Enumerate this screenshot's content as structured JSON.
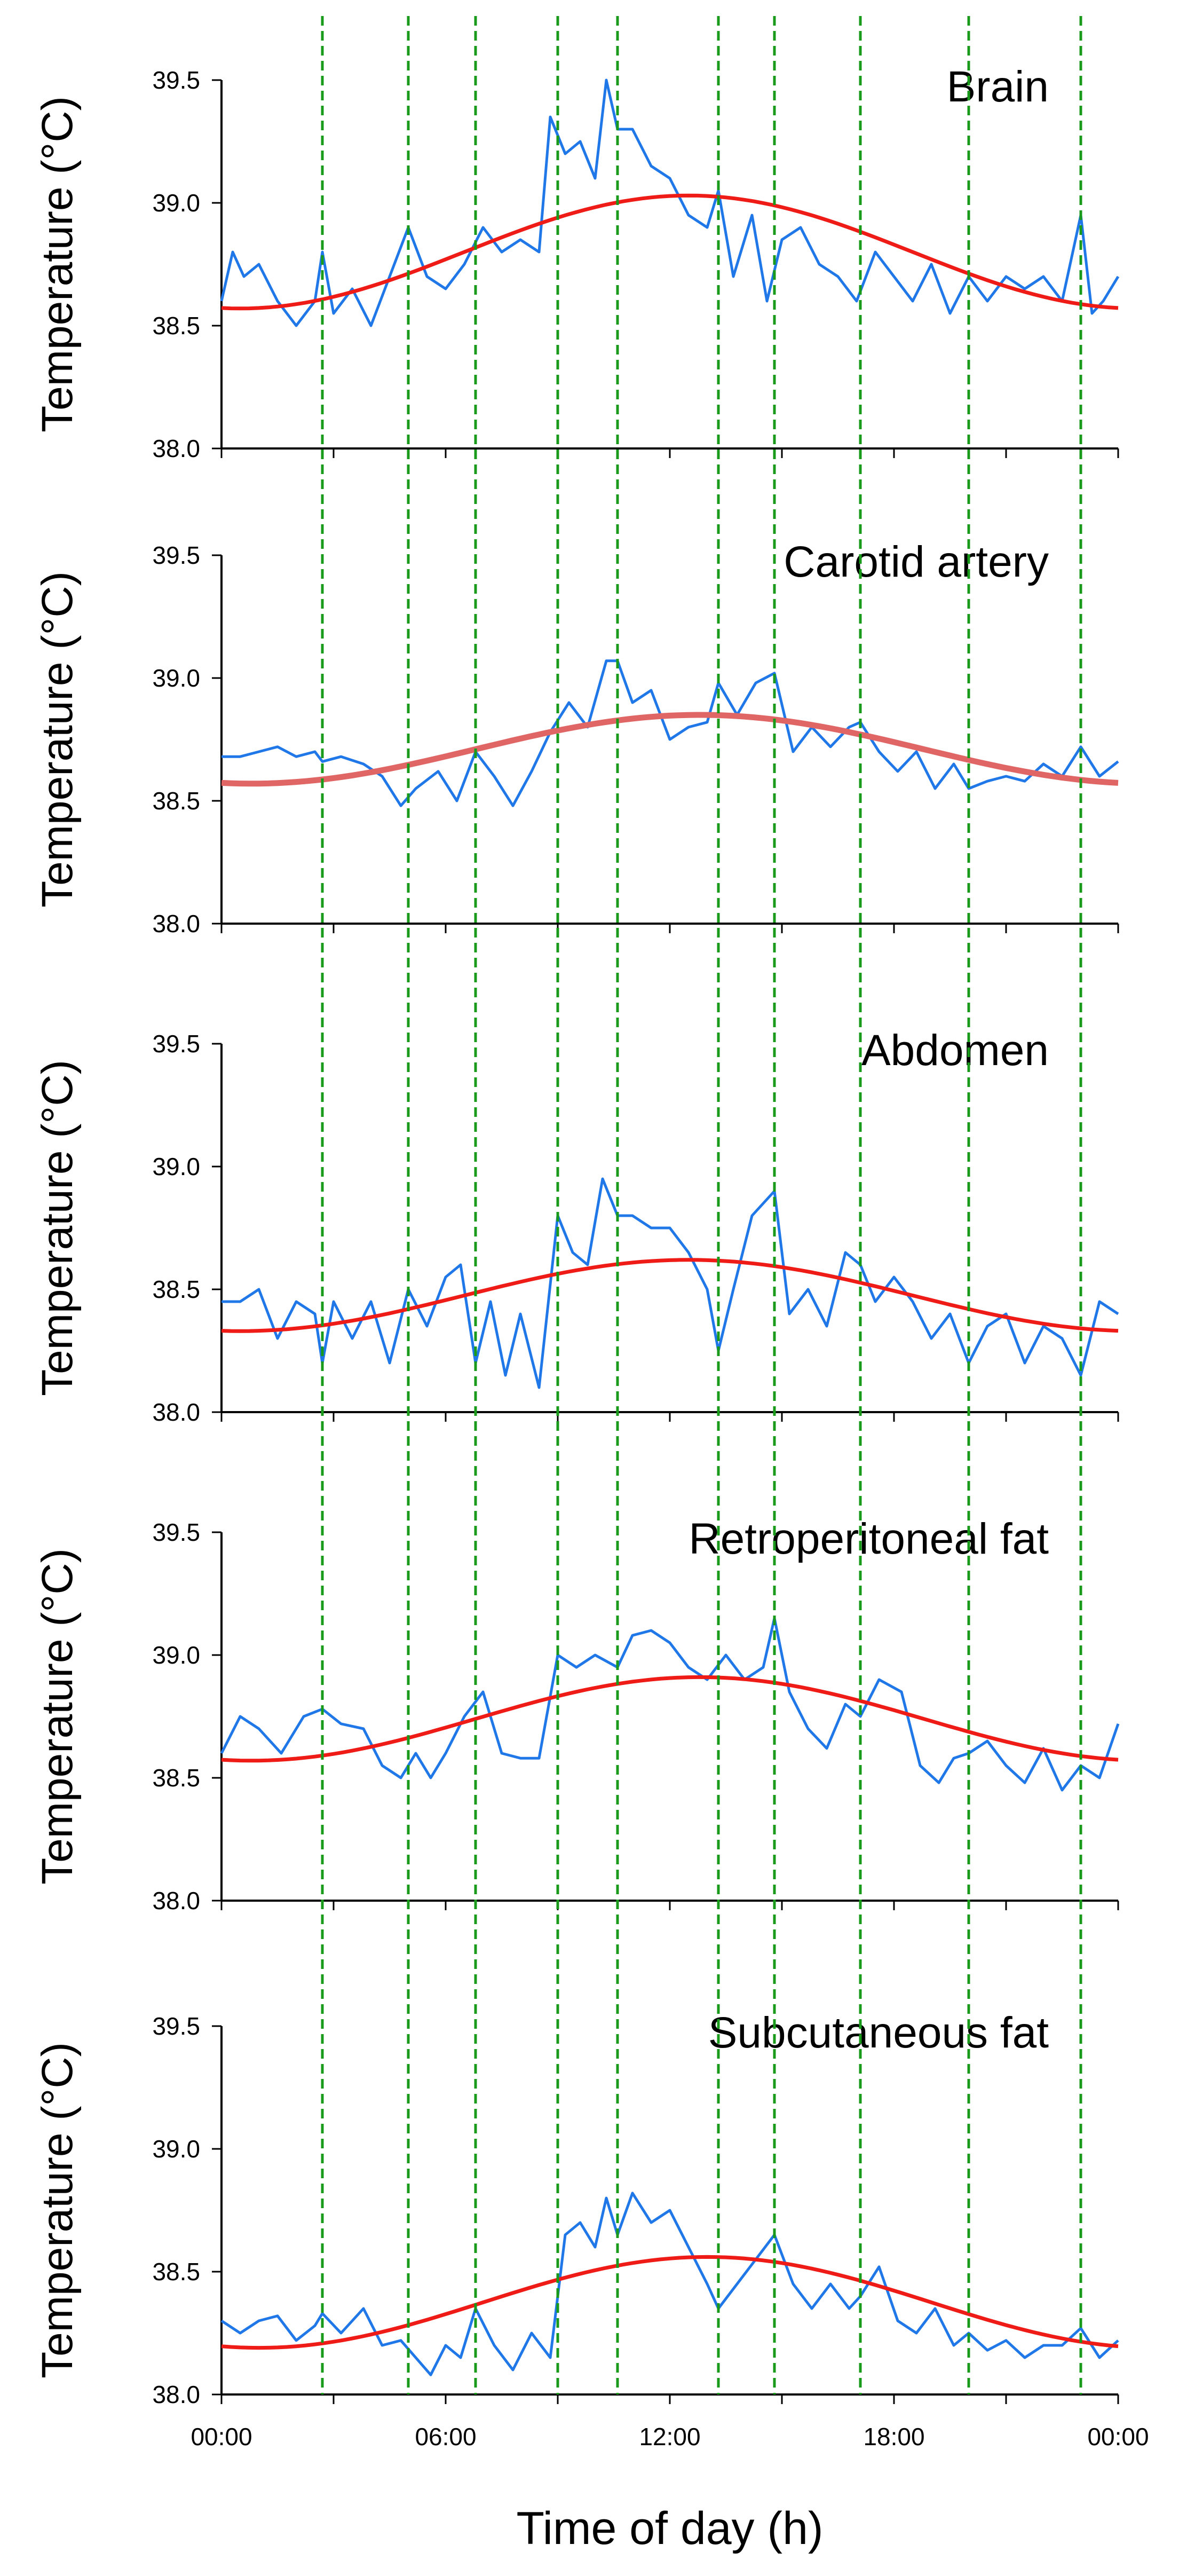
{
  "chart_data": {
    "type": "line",
    "xlabel": "Time of day (h)",
    "x_ticks": [
      "00:00",
      "06:00",
      "12:00",
      "18:00",
      "00:00"
    ],
    "x_range_hours": [
      0,
      24
    ],
    "vertical_markers_hours": [
      2.7,
      5.0,
      6.8,
      9.0,
      10.6,
      13.3,
      14.8,
      17.1,
      20.0,
      23.0
    ],
    "colors": {
      "measured": "#1f77e8",
      "fit": "#ee1b17",
      "markers": "#1a9a1a"
    },
    "panels": [
      {
        "title": "Brain",
        "ylabel": "Temperature (°C)",
        "ylim": [
          38.0,
          39.5
        ],
        "y_ticks": [
          "38.0",
          "38.5",
          "39.0",
          "39.5"
        ],
        "measured": {
          "x": [
            0,
            0.3,
            0.6,
            1.0,
            1.5,
            2.0,
            2.5,
            2.7,
            3.0,
            3.5,
            4.0,
            4.5,
            5.0,
            5.5,
            6.0,
            6.5,
            7.0,
            7.5,
            8.0,
            8.5,
            8.8,
            9.2,
            9.6,
            10.0,
            10.3,
            10.6,
            11.0,
            11.5,
            12.0,
            12.5,
            13.0,
            13.3,
            13.7,
            14.2,
            14.6,
            15.0,
            15.5,
            16.0,
            16.5,
            17.0,
            17.5,
            18.0,
            18.5,
            19.0,
            19.5,
            20.0,
            20.5,
            21.0,
            21.5,
            22.0,
            22.5,
            23.0,
            23.3,
            23.6,
            24.0
          ],
          "values": [
            38.6,
            38.8,
            38.7,
            38.75,
            38.6,
            38.5,
            38.6,
            38.8,
            38.55,
            38.65,
            38.5,
            38.7,
            38.9,
            38.7,
            38.65,
            38.75,
            38.9,
            38.8,
            38.85,
            38.8,
            39.35,
            39.2,
            39.25,
            39.1,
            39.5,
            39.3,
            39.3,
            39.15,
            39.1,
            38.95,
            38.9,
            39.05,
            38.7,
            38.95,
            38.6,
            38.85,
            38.9,
            38.75,
            38.7,
            38.6,
            38.8,
            38.7,
            38.6,
            38.75,
            38.55,
            38.7,
            38.6,
            38.7,
            38.65,
            38.7,
            38.6,
            38.95,
            38.55,
            38.6,
            38.7
          ]
        },
        "fit": {
          "min": 38.57,
          "max": 39.03,
          "peak_hour": 12.5
        }
      },
      {
        "title": "Carotid artery",
        "ylabel": "Temperature (°C)",
        "ylim": [
          38.0,
          39.5
        ],
        "y_ticks": [
          "38.0",
          "38.5",
          "39.0",
          "39.5"
        ],
        "measured": {
          "x": [
            0,
            0.5,
            1.0,
            1.5,
            2.0,
            2.5,
            2.7,
            3.2,
            3.8,
            4.3,
            4.8,
            5.2,
            5.8,
            6.3,
            6.8,
            7.3,
            7.8,
            8.3,
            8.8,
            9.3,
            9.8,
            10.3,
            10.6,
            11.0,
            11.5,
            12.0,
            12.5,
            13.0,
            13.3,
            13.8,
            14.3,
            14.8,
            15.3,
            15.8,
            16.3,
            16.8,
            17.1,
            17.6,
            18.1,
            18.6,
            19.1,
            19.6,
            20.0,
            20.5,
            21.0,
            21.5,
            22.0,
            22.5,
            23.0,
            23.5,
            24.0
          ],
          "values": [
            38.68,
            38.68,
            38.7,
            38.72,
            38.68,
            38.7,
            38.66,
            38.68,
            38.65,
            38.6,
            38.48,
            38.55,
            38.62,
            38.5,
            38.7,
            38.6,
            38.48,
            38.62,
            38.78,
            38.9,
            38.8,
            39.07,
            39.07,
            38.9,
            38.95,
            38.75,
            38.8,
            38.82,
            38.98,
            38.85,
            38.98,
            39.02,
            38.7,
            38.8,
            38.72,
            38.8,
            38.82,
            38.7,
            38.62,
            38.7,
            38.55,
            38.65,
            38.55,
            38.58,
            38.6,
            38.58,
            38.65,
            38.6,
            38.72,
            38.6,
            38.66
          ]
        },
        "fit": {
          "min": 38.57,
          "max": 38.85,
          "peak_hour": 12.8
        }
      },
      {
        "title": "Abdomen",
        "ylabel": "Temperature (°C)",
        "ylim": [
          38.0,
          39.5
        ],
        "y_ticks": [
          "38.0",
          "38.5",
          "39.0",
          "39.5"
        ],
        "measured": {
          "x": [
            0,
            0.5,
            1.0,
            1.5,
            2.0,
            2.5,
            2.7,
            3.0,
            3.5,
            4.0,
            4.5,
            5.0,
            5.5,
            6.0,
            6.4,
            6.8,
            7.2,
            7.6,
            8.0,
            8.5,
            9.0,
            9.4,
            9.8,
            10.2,
            10.6,
            11.0,
            11.5,
            12.0,
            12.5,
            13.0,
            13.3,
            13.7,
            14.2,
            14.8,
            15.2,
            15.7,
            16.2,
            16.7,
            17.1,
            17.5,
            18.0,
            18.5,
            19.0,
            19.5,
            20.0,
            20.5,
            21.0,
            21.5,
            22.0,
            22.5,
            23.0,
            23.5,
            24.0
          ],
          "values": [
            38.45,
            38.45,
            38.5,
            38.3,
            38.45,
            38.4,
            38.2,
            38.45,
            38.3,
            38.45,
            38.2,
            38.5,
            38.35,
            38.55,
            38.6,
            38.2,
            38.45,
            38.15,
            38.4,
            38.1,
            38.8,
            38.65,
            38.6,
            38.95,
            38.8,
            38.8,
            38.75,
            38.75,
            38.65,
            38.5,
            38.25,
            38.5,
            38.8,
            38.9,
            38.4,
            38.5,
            38.35,
            38.65,
            38.6,
            38.45,
            38.55,
            38.45,
            38.3,
            38.4,
            38.2,
            38.35,
            38.4,
            38.2,
            38.35,
            38.3,
            38.15,
            38.45,
            38.4
          ]
        },
        "fit": {
          "min": 38.33,
          "max": 38.62,
          "peak_hour": 12.5
        }
      },
      {
        "title": "Retroperitoneal fat",
        "ylabel": "Temperature (°C)",
        "ylim": [
          38.0,
          39.5
        ],
        "y_ticks": [
          "38.0",
          "38.5",
          "39.0",
          "39.5"
        ],
        "measured": {
          "x": [
            0,
            0.5,
            1.0,
            1.6,
            2.2,
            2.7,
            3.2,
            3.8,
            4.3,
            4.8,
            5.2,
            5.6,
            6.0,
            6.5,
            7.0,
            7.5,
            8.0,
            8.5,
            9.0,
            9.5,
            10.0,
            10.6,
            11.0,
            11.5,
            12.0,
            12.5,
            13.0,
            13.5,
            14.0,
            14.5,
            14.8,
            15.2,
            15.7,
            16.2,
            16.7,
            17.1,
            17.6,
            18.2,
            18.7,
            19.2,
            19.6,
            20.0,
            20.5,
            21.0,
            21.5,
            22.0,
            22.5,
            23.0,
            23.5,
            24.0
          ],
          "values": [
            38.6,
            38.75,
            38.7,
            38.6,
            38.75,
            38.78,
            38.72,
            38.7,
            38.55,
            38.5,
            38.6,
            38.5,
            38.6,
            38.75,
            38.85,
            38.6,
            38.58,
            38.58,
            39.0,
            38.95,
            39.0,
            38.95,
            39.08,
            39.1,
            39.05,
            38.95,
            38.9,
            39.0,
            38.9,
            38.95,
            39.15,
            38.85,
            38.7,
            38.62,
            38.8,
            38.75,
            38.9,
            38.85,
            38.55,
            38.48,
            38.58,
            38.6,
            38.65,
            38.55,
            38.48,
            38.62,
            38.45,
            38.55,
            38.5,
            38.72
          ]
        },
        "fit": {
          "min": 38.57,
          "max": 38.91,
          "peak_hour": 12.8
        }
      },
      {
        "title": "Subcutaneous fat",
        "ylabel": "Temperature (°C)",
        "ylim": [
          38.0,
          39.5
        ],
        "y_ticks": [
          "38.0",
          "38.5",
          "39.0",
          "39.5"
        ],
        "measured": {
          "x": [
            0,
            0.5,
            1.0,
            1.5,
            2.0,
            2.5,
            2.7,
            3.2,
            3.8,
            4.3,
            4.8,
            5.2,
            5.6,
            6.0,
            6.4,
            6.8,
            7.3,
            7.8,
            8.3,
            8.8,
            9.2,
            9.6,
            10.0,
            10.3,
            10.6,
            11.0,
            11.5,
            12.0,
            12.5,
            13.0,
            13.3,
            13.8,
            14.3,
            14.8,
            15.3,
            15.8,
            16.3,
            16.8,
            17.1,
            17.6,
            18.1,
            18.6,
            19.1,
            19.6,
            20.0,
            20.5,
            21.0,
            21.5,
            22.0,
            22.5,
            23.0,
            23.5,
            24.0
          ],
          "values": [
            38.3,
            38.25,
            38.3,
            38.32,
            38.22,
            38.28,
            38.33,
            38.25,
            38.35,
            38.2,
            38.22,
            38.15,
            38.08,
            38.2,
            38.15,
            38.35,
            38.2,
            38.1,
            38.25,
            38.15,
            38.65,
            38.7,
            38.6,
            38.8,
            38.65,
            38.82,
            38.7,
            38.75,
            38.6,
            38.45,
            38.35,
            38.45,
            38.55,
            38.65,
            38.45,
            38.35,
            38.45,
            38.35,
            38.4,
            38.52,
            38.3,
            38.25,
            38.35,
            38.2,
            38.25,
            38.18,
            38.22,
            38.15,
            38.2,
            38.2,
            38.27,
            38.15,
            38.22
          ]
        },
        "fit": {
          "min": 38.19,
          "max": 38.56,
          "peak_hour": 13.0
        }
      }
    ]
  }
}
